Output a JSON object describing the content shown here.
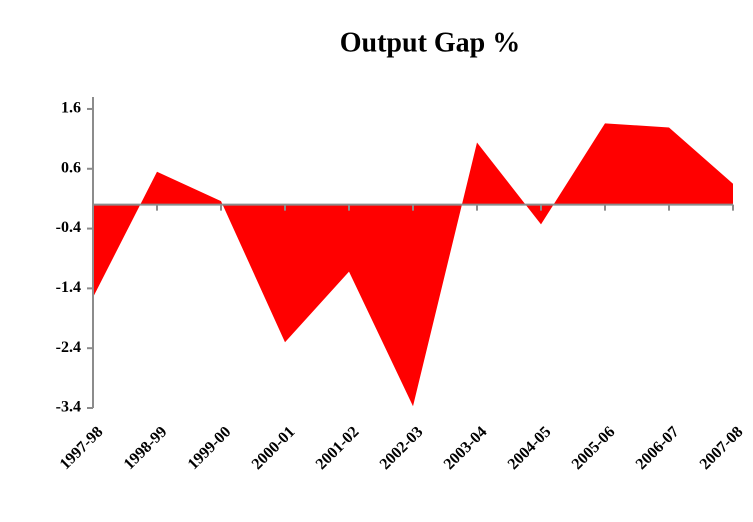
{
  "chart_data": {
    "type": "area",
    "title": "Output Gap %",
    "categories": [
      "1997-98",
      "1998-99",
      "1999-00",
      "2000-01",
      "2001-02",
      "2002-03",
      "2003-04",
      "2004-05",
      "2005-06",
      "2006-07",
      "2007-08"
    ],
    "values": [
      -1.55,
      0.55,
      0.06,
      -2.3,
      -1.12,
      -3.37,
      1.04,
      -0.33,
      1.36,
      1.29,
      0.35
    ],
    "color": "#ff0000",
    "ylim": [
      -3.4,
      1.8
    ],
    "yticks": [
      1.6,
      0.6,
      -0.4,
      -1.4,
      -2.4,
      -3.4
    ],
    "grid": false
  }
}
